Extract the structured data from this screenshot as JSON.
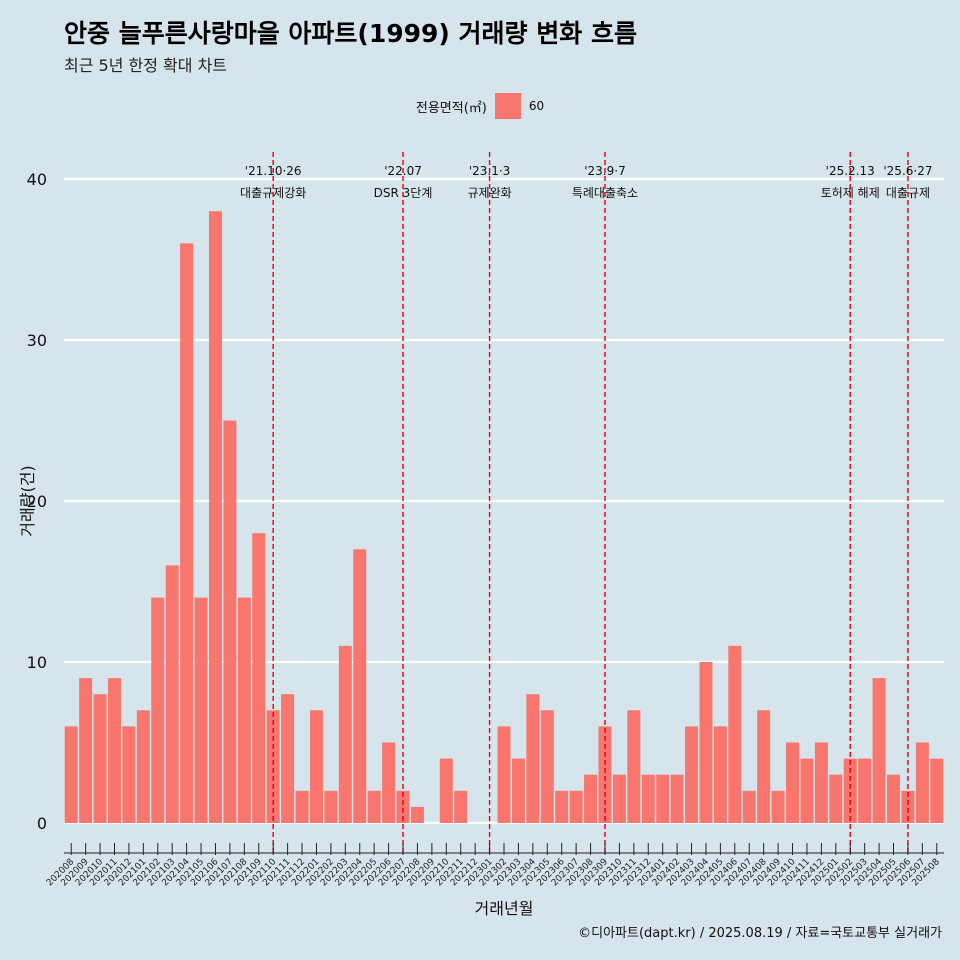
{
  "header": {
    "title": "안중 늘푸른사랑마을 아파트(1999) 거래량 변화 흐름",
    "subtitle": "최근 5년 한정 확대 차트"
  },
  "legend": {
    "title": "전용면적(㎡)",
    "items": [
      {
        "label": "60",
        "color": "#f8766d"
      }
    ]
  },
  "caption": "©디아파트(dapt.kr) / 2025.08.19 / 자료=국토교통부 실거래가",
  "colors": {
    "background": "#d6e4ec",
    "bar": "#f8766d",
    "grid": "#ffffff",
    "event_line": "#e8000b"
  },
  "chart_data": {
    "type": "bar",
    "xlabel": "거래년월",
    "ylabel": "거래량(건)",
    "ylim": [
      -1.5,
      41
    ],
    "yticks": [
      0,
      10,
      20,
      30,
      40
    ],
    "grid": true,
    "legend_position": "top",
    "categories": [
      "202008",
      "202009",
      "202010",
      "202011",
      "202012",
      "202101",
      "202102",
      "202103",
      "202104",
      "202105",
      "202106",
      "202107",
      "202108",
      "202109",
      "202110",
      "202111",
      "202112",
      "202201",
      "202202",
      "202203",
      "202204",
      "202205",
      "202206",
      "202207",
      "202208",
      "202209",
      "202210",
      "202211",
      "202212",
      "202301",
      "202302",
      "202303",
      "202304",
      "202305",
      "202306",
      "202307",
      "202308",
      "202309",
      "202310",
      "202311",
      "202312",
      "202401",
      "202402",
      "202403",
      "202404",
      "202405",
      "202406",
      "202407",
      "202408",
      "202409",
      "202410",
      "202411",
      "202412",
      "202501",
      "202502",
      "202503",
      "202504",
      "202505",
      "202506",
      "202507",
      "202508"
    ],
    "series": [
      {
        "name": "60",
        "values": [
          6,
          9,
          8,
          9,
          6,
          7,
          14,
          16,
          36,
          14,
          38,
          25,
          14,
          18,
          7,
          8,
          2,
          7,
          2,
          11,
          17,
          2,
          5,
          2,
          1,
          0,
          4,
          2,
          0,
          0,
          6,
          4,
          8,
          7,
          2,
          2,
          3,
          6,
          3,
          7,
          3,
          3,
          3,
          6,
          10,
          6,
          11,
          2,
          7,
          2,
          5,
          4,
          5,
          3,
          4,
          4,
          9,
          3,
          2,
          5,
          4
        ]
      }
    ],
    "events": [
      {
        "date": "'21.10·26",
        "label": "대출규제강화",
        "category": "202110"
      },
      {
        "date": "'22.07",
        "label": "DSR 3단계",
        "category": "202207"
      },
      {
        "date": "'23.1·3",
        "label": "규제완화",
        "category": "202301"
      },
      {
        "date": "'23.9·7",
        "label": "특례대출축소",
        "category": "202309"
      },
      {
        "date": "'25.2.13",
        "label": "토허제 해제",
        "category": "202502"
      },
      {
        "date": "'25.6·27",
        "label": "대출규제",
        "category": "202506"
      }
    ]
  }
}
